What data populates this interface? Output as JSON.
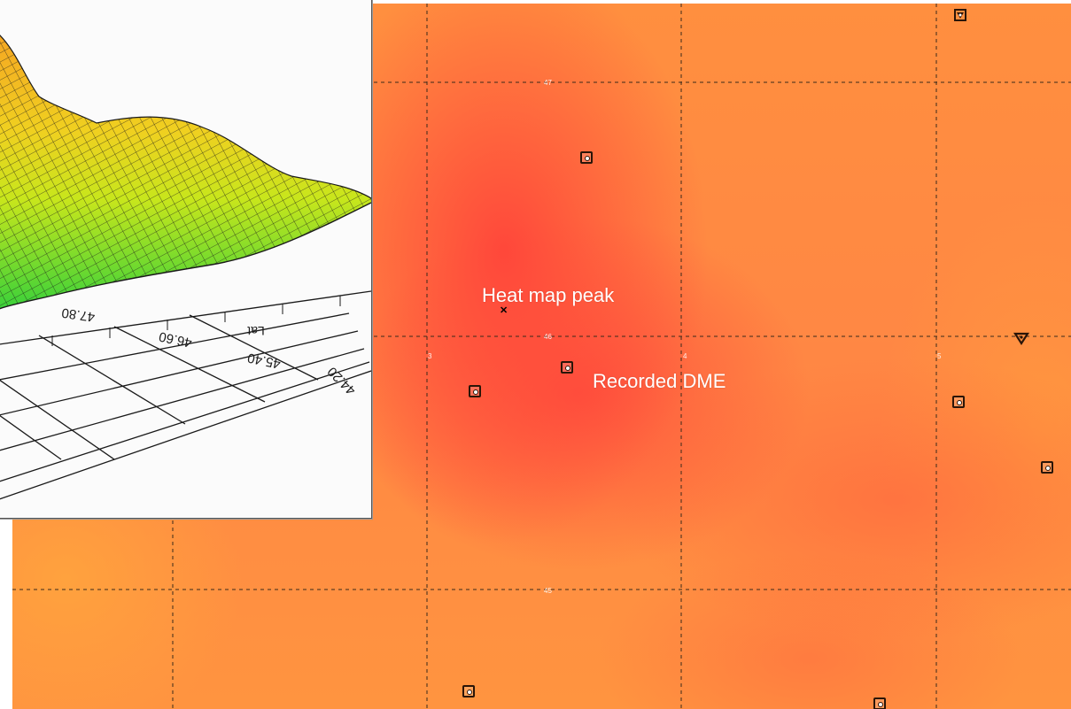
{
  "map": {
    "labels": {
      "peak": "Heat map peak",
      "dme": "Recorded DME"
    },
    "grid_labels": {
      "lat_47": "47",
      "lat_46": "46",
      "lat_45": "45",
      "lon_3": "3",
      "lon_4": "4",
      "lon_5": "5"
    },
    "colors": {
      "heat_high": "#ff443a",
      "heat_low": "#ff9a3e",
      "grid": "#3a2a1a",
      "label": "#ffffff",
      "navaid": "#2a1508"
    },
    "icons": {
      "dme_station": "dme-navaid-icon",
      "vortac_station": "vortac-icon",
      "peak": "cross-marker-icon"
    }
  },
  "inset": {
    "axis_tick_labels": [
      "47.80",
      "46.60",
      "45.40",
      "44.20"
    ],
    "axis_name": "Lat",
    "colors": {
      "surface_high": "#f5a623",
      "surface_mid": "#e6e619",
      "surface_low": "#3ad13a",
      "mesh": "#1a1a1a"
    }
  }
}
